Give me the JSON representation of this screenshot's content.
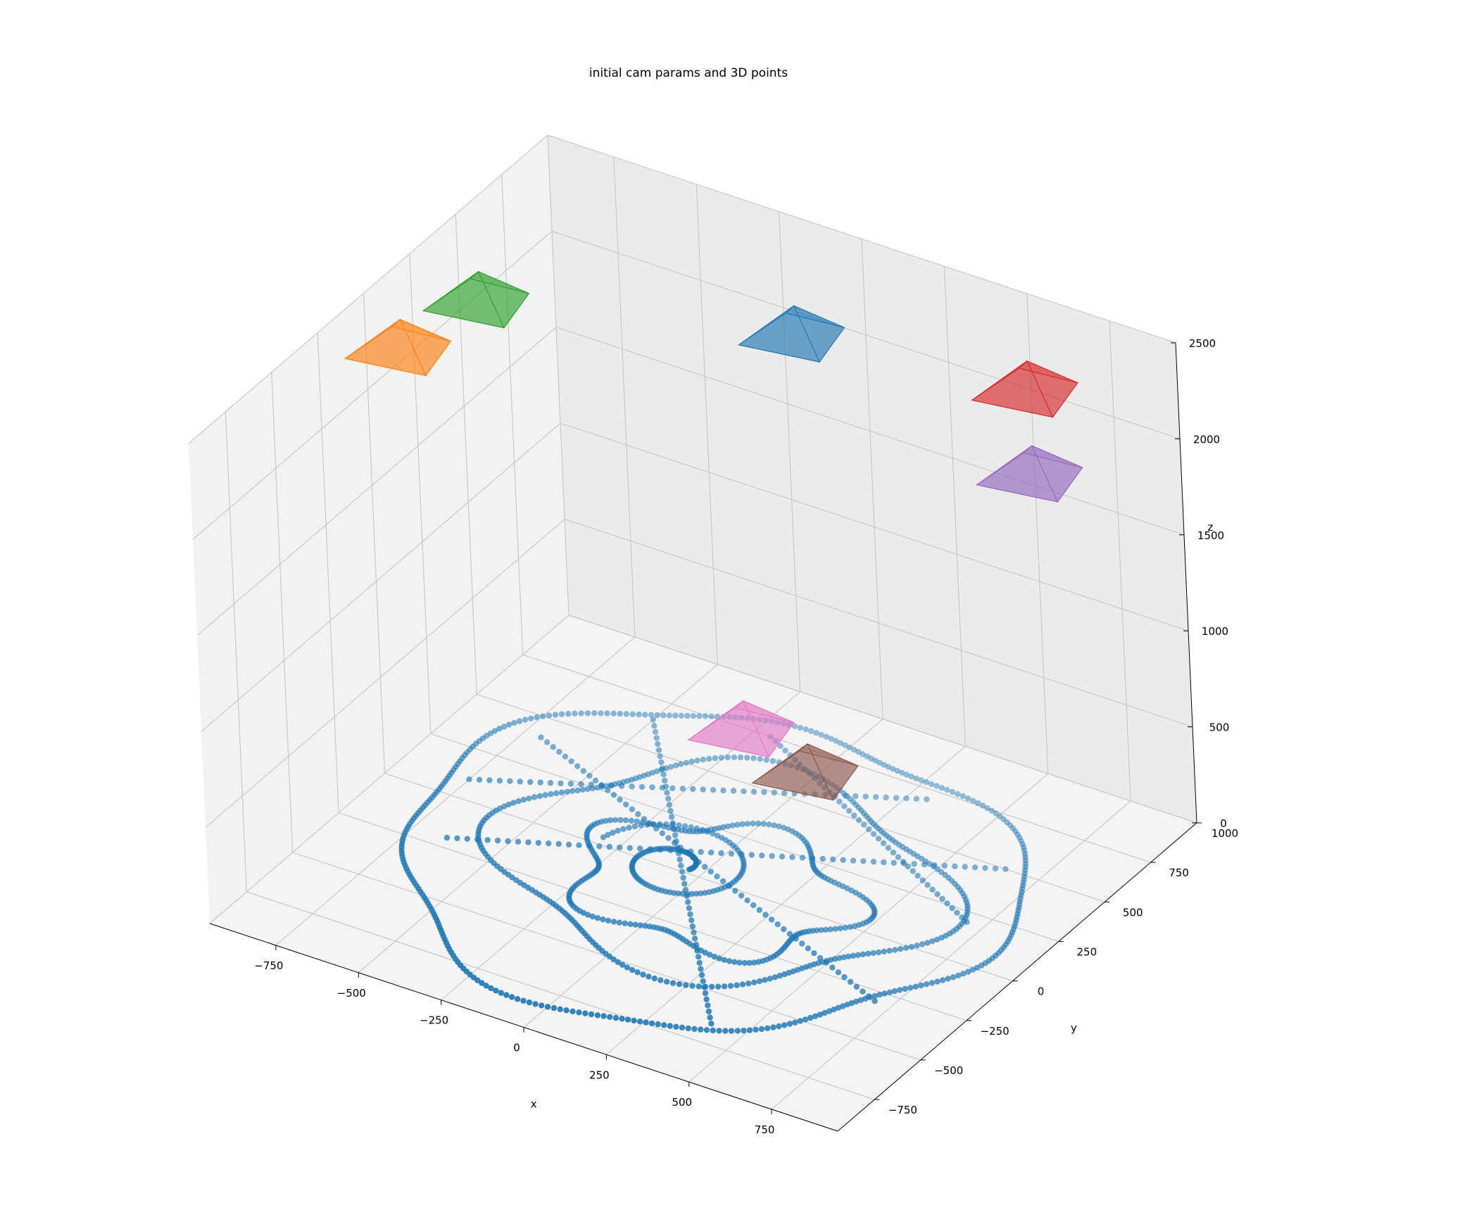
{
  "chart_data": {
    "type": "scatter3d",
    "title": "initial cam params and 3D points",
    "xlabel": "x",
    "ylabel": "y",
    "zlabel": "z",
    "xlim": [
      -950,
      950
    ],
    "ylim": [
      -950,
      1000
    ],
    "zlim": [
      0,
      2500
    ],
    "grid": true,
    "x_ticks": [
      -750,
      -500,
      -250,
      0,
      250,
      500,
      750
    ],
    "y_ticks": [
      -750,
      -500,
      -250,
      0,
      250,
      500,
      750,
      1000
    ],
    "z_ticks": [
      0,
      500,
      1000,
      1500,
      2000,
      2500
    ],
    "point_color": "#1f77b4",
    "cameras": [
      {
        "color": "#1f77b4",
        "center": [
          -100,
          800,
          2150
        ]
      },
      {
        "color": "#ff7f0e",
        "center": [
          -900,
          100,
          2200
        ]
      },
      {
        "color": "#2ca02c",
        "center": [
          -800,
          350,
          2300
        ]
      },
      {
        "color": "#d62728",
        "center": [
          550,
          900,
          2150
        ]
      },
      {
        "color": "#9467bd",
        "center": [
          700,
          650,
          2000
        ]
      },
      {
        "color": "#e377c2",
        "center": [
          -250,
          700,
          90
        ]
      },
      {
        "color": "#8c564b",
        "center": [
          0,
          600,
          90
        ]
      }
    ],
    "trajectory_note_points": 1
  }
}
